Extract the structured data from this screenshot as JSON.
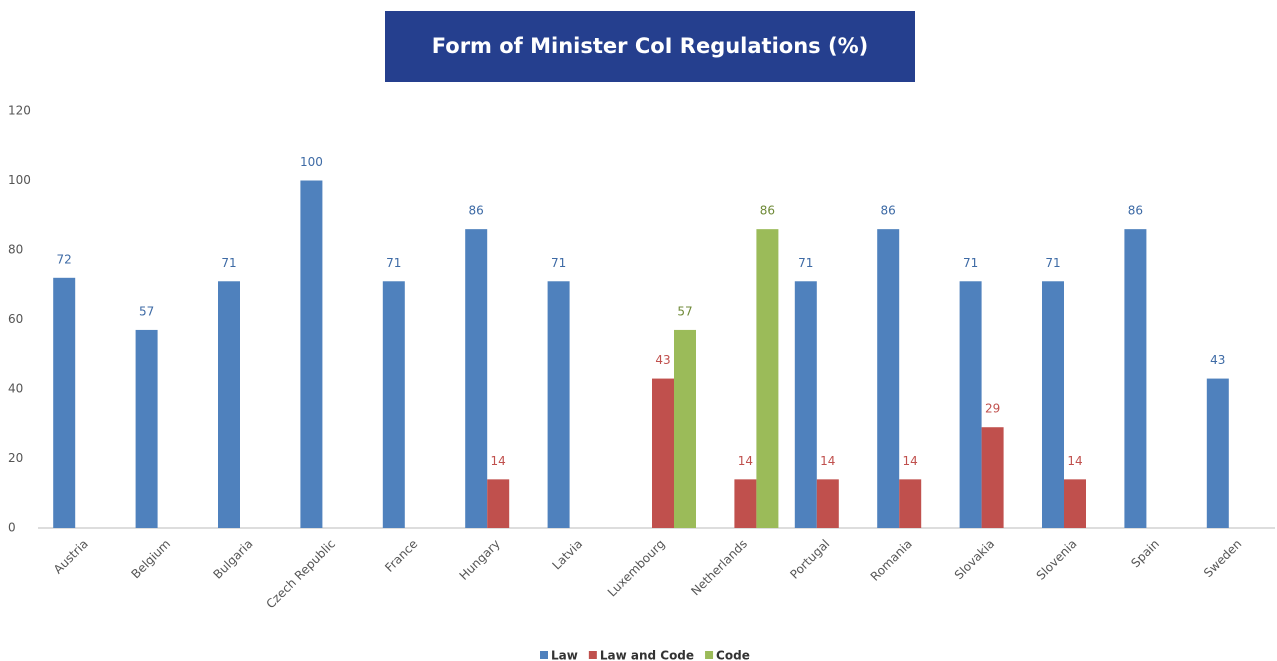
{
  "chart_data": {
    "type": "bar",
    "title": "Form of Minister CoI Regulations (%)",
    "categories": [
      "Austria",
      "Belgium",
      "Bulgaria",
      "Czech Republic",
      "France",
      "Hungary",
      "Latvia",
      "Luxembourg",
      "Netherlands",
      "Portugal",
      "Romania",
      "Slovakia",
      "Slovenia",
      "Spain",
      "Sweden"
    ],
    "series": [
      {
        "name": "Law",
        "color": "#4f81bd",
        "values": [
          72,
          57,
          71,
          100,
          71,
          86,
          71,
          null,
          null,
          71,
          86,
          71,
          71,
          86,
          43
        ]
      },
      {
        "name": "Law and Code",
        "color": "#c0504d",
        "values": [
          null,
          null,
          null,
          null,
          null,
          14,
          null,
          43,
          14,
          14,
          14,
          29,
          14,
          null,
          null
        ]
      },
      {
        "name": "Code",
        "color": "#9bbb59",
        "values": [
          null,
          null,
          null,
          null,
          null,
          null,
          null,
          57,
          86,
          null,
          null,
          null,
          null,
          null,
          null
        ]
      }
    ],
    "ylim": [
      0,
      120
    ],
    "yticks": [
      0,
      20,
      40,
      60,
      80,
      100,
      120
    ],
    "legend": "bottom"
  }
}
